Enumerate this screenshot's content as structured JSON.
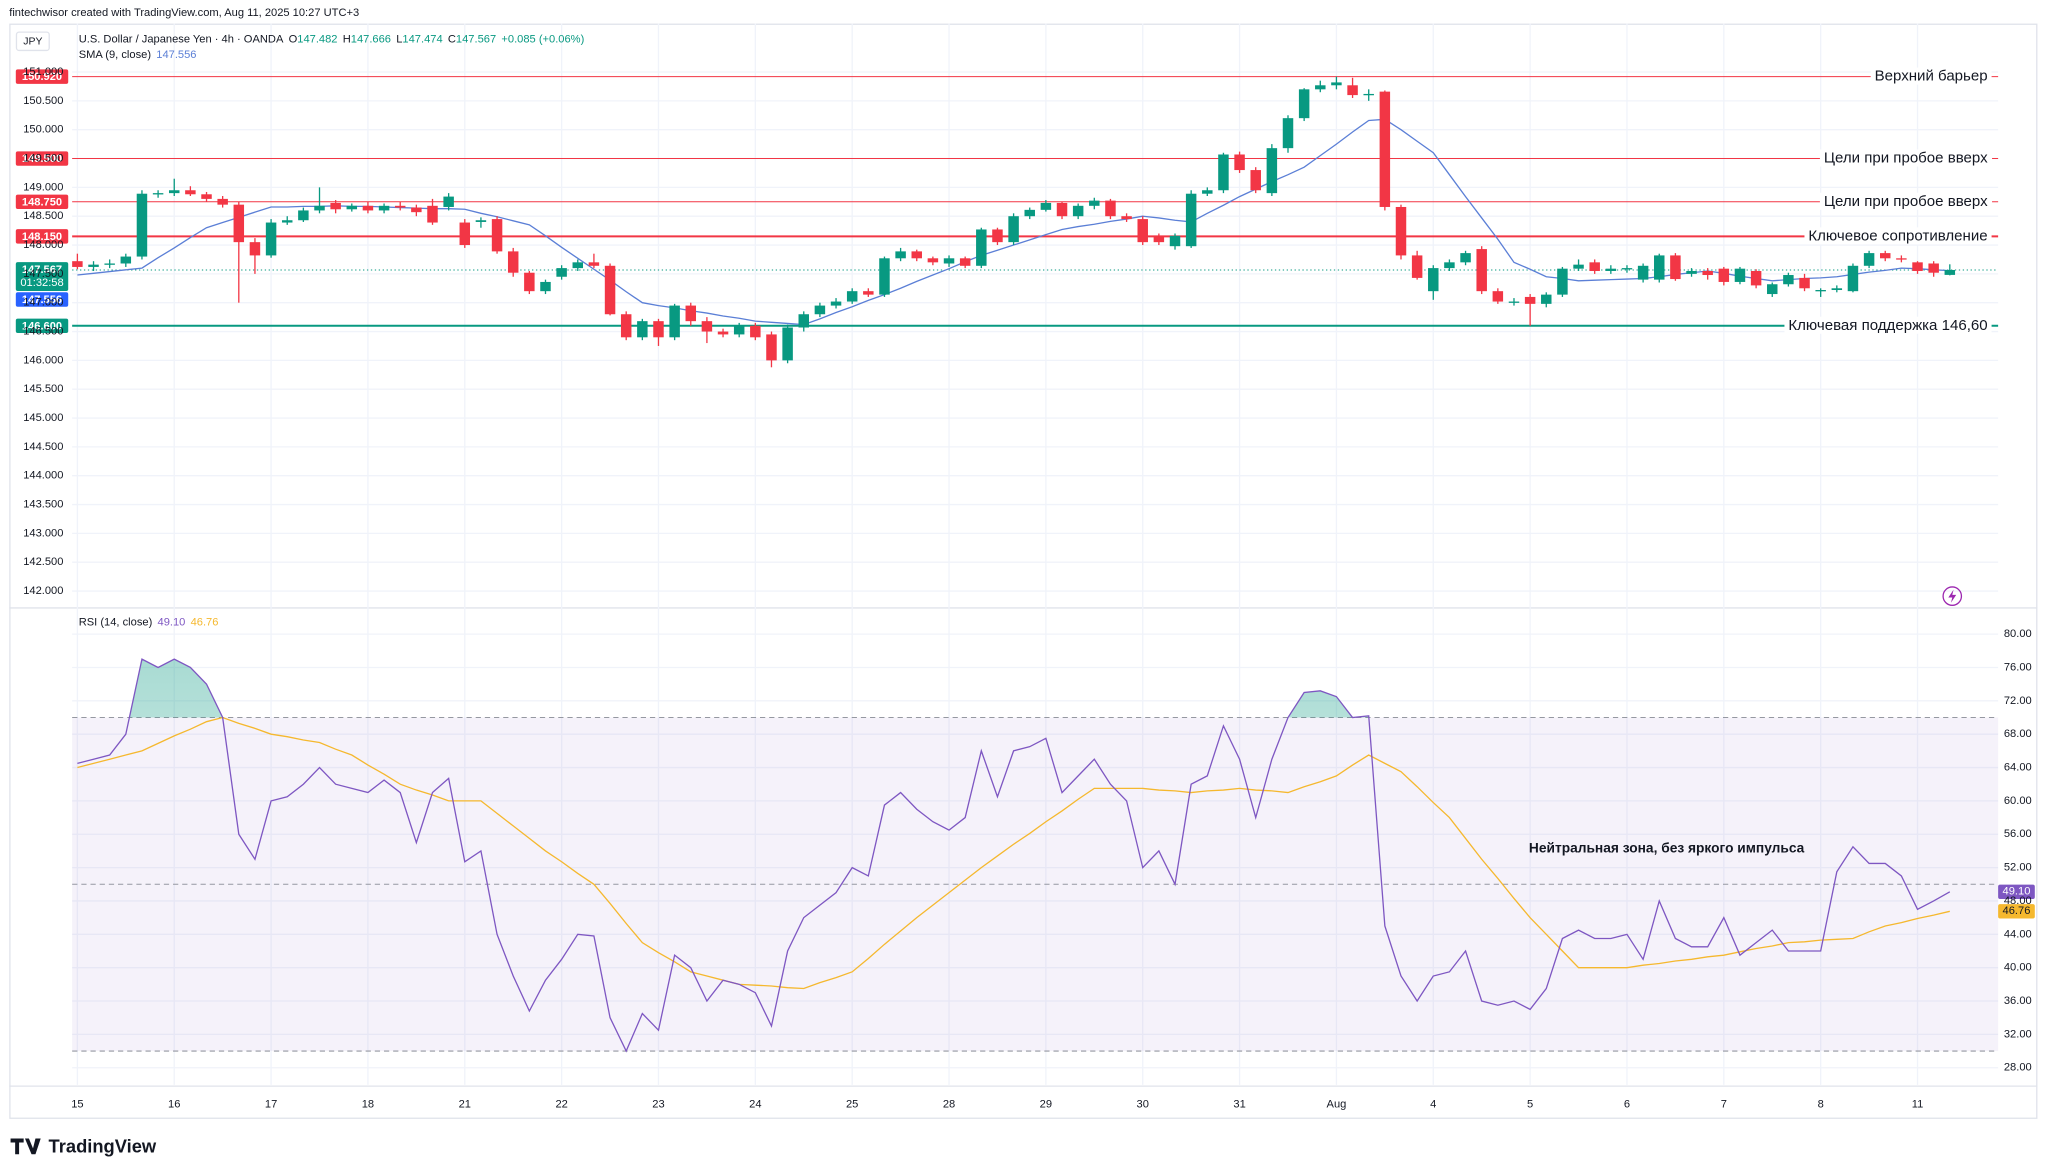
{
  "chart_data": {
    "type": "candlestick",
    "credit": "fintechwisor created with TradingView.com, Aug 11, 2025 10:27 UTC+3",
    "symbol": "JPY",
    "title": "U.S. Dollar / Japanese Yen · 4h · OANDA",
    "ohlc_legend": [
      {
        "label": "O",
        "value": 147.482
      },
      {
        "label": "H",
        "value": 147.666
      },
      {
        "label": "L",
        "value": 147.474
      },
      {
        "label": "C",
        "value": 147.567
      }
    ],
    "change": "+0.085 (+0.06%)",
    "up_color": "#089981",
    "down_color": "#f23645",
    "ylim": [
      141.73,
      151.84
    ],
    "yticks": [
      {
        "value": 142,
        "label": "142.000"
      },
      {
        "value": 142.5,
        "label": "142.500"
      },
      {
        "value": 143,
        "label": "143.000"
      },
      {
        "value": 143.5,
        "label": "143.500"
      },
      {
        "value": 144,
        "label": "144.000"
      },
      {
        "value": 144.5,
        "label": "144.500"
      },
      {
        "value": 145,
        "label": "145.000"
      },
      {
        "value": 145.5,
        "label": "145.500"
      },
      {
        "value": 146,
        "label": "146.000"
      },
      {
        "value": 146.5,
        "label": "146.500"
      },
      {
        "value": 147,
        "label": "147.000"
      },
      {
        "value": 147.5,
        "label": "147.500"
      },
      {
        "value": 148,
        "label": "148.000"
      },
      {
        "value": 148.5,
        "label": "148.500"
      },
      {
        "value": 149,
        "label": "149.000"
      },
      {
        "value": 149.5,
        "label": "149.500"
      },
      {
        "value": 150,
        "label": "150.000"
      },
      {
        "value": 150.5,
        "label": "150.500"
      },
      {
        "value": 151,
        "label": "151.000"
      }
    ],
    "x_labels": [
      "15",
      "16",
      "17",
      "18",
      "21",
      "22",
      "23",
      "24",
      "25",
      "28",
      "29",
      "30",
      "31",
      "Aug",
      "4",
      "5",
      "6",
      "7",
      "8",
      "11"
    ],
    "candles": [
      [
        147.72,
        147.85,
        147.58,
        147.62
      ],
      [
        147.62,
        147.72,
        147.55,
        147.66
      ],
      [
        147.66,
        147.75,
        147.6,
        147.68
      ],
      [
        147.68,
        147.85,
        147.62,
        147.8
      ],
      [
        147.8,
        148.95,
        147.75,
        148.89
      ],
      [
        148.89,
        148.95,
        148.82,
        148.9
      ],
      [
        148.9,
        149.15,
        148.85,
        148.95
      ],
      [
        148.95,
        149.02,
        148.85,
        148.88
      ],
      [
        148.88,
        148.92,
        148.75,
        148.8
      ],
      [
        148.8,
        148.85,
        148.65,
        148.7
      ],
      [
        148.7,
        148.75,
        147.0,
        148.05
      ],
      [
        148.05,
        148.12,
        147.5,
        147.82
      ],
      [
        147.82,
        148.45,
        147.78,
        148.39
      ],
      [
        148.39,
        148.5,
        148.35,
        148.43
      ],
      [
        148.43,
        148.65,
        148.4,
        148.6
      ],
      [
        148.6,
        149.0,
        148.55,
        148.68
      ],
      [
        148.73,
        148.78,
        148.55,
        148.62
      ],
      [
        148.62,
        148.72,
        148.58,
        148.68
      ],
      [
        148.68,
        148.75,
        148.55,
        148.6
      ],
      [
        148.6,
        148.72,
        148.55,
        148.68
      ],
      [
        148.68,
        148.75,
        148.6,
        148.65
      ],
      [
        148.65,
        148.7,
        148.5,
        148.57
      ],
      [
        148.68,
        148.8,
        148.35,
        148.39
      ],
      [
        148.66,
        148.9,
        148.6,
        148.84
      ],
      [
        148.39,
        148.45,
        147.95,
        148.0
      ],
      [
        148.4,
        148.48,
        148.3,
        148.43
      ],
      [
        148.45,
        148.5,
        147.85,
        147.89
      ],
      [
        147.89,
        147.95,
        147.45,
        147.52
      ],
      [
        147.52,
        147.55,
        147.15,
        147.2
      ],
      [
        147.2,
        147.4,
        147.15,
        147.36
      ],
      [
        147.45,
        147.65,
        147.4,
        147.6
      ],
      [
        147.6,
        147.75,
        147.55,
        147.7
      ],
      [
        147.7,
        147.85,
        147.6,
        147.64
      ],
      [
        147.64,
        147.68,
        146.78,
        146.8
      ],
      [
        146.8,
        146.85,
        146.35,
        146.4
      ],
      [
        146.4,
        146.72,
        146.35,
        146.68
      ],
      [
        146.68,
        146.72,
        146.25,
        146.4
      ],
      [
        146.4,
        146.98,
        146.35,
        146.95
      ],
      [
        146.95,
        147.0,
        146.6,
        146.68
      ],
      [
        146.68,
        146.75,
        146.3,
        146.5
      ],
      [
        146.5,
        146.55,
        146.4,
        146.45
      ],
      [
        146.45,
        146.65,
        146.4,
        146.6
      ],
      [
        146.6,
        146.65,
        146.35,
        146.4
      ],
      [
        146.45,
        146.5,
        145.88,
        146.0
      ],
      [
        146.0,
        146.62,
        145.95,
        146.57
      ],
      [
        146.57,
        146.85,
        146.5,
        146.8
      ],
      [
        146.8,
        147.0,
        146.75,
        146.95
      ],
      [
        146.95,
        147.08,
        146.9,
        147.02
      ],
      [
        147.02,
        147.25,
        146.98,
        147.2
      ],
      [
        147.2,
        147.25,
        147.1,
        147.14
      ],
      [
        147.14,
        147.8,
        147.1,
        147.77
      ],
      [
        147.77,
        147.95,
        147.72,
        147.89
      ],
      [
        147.89,
        147.92,
        147.72,
        147.77
      ],
      [
        147.77,
        147.8,
        147.65,
        147.7
      ],
      [
        147.68,
        147.82,
        147.62,
        147.77
      ],
      [
        147.77,
        147.8,
        147.6,
        147.64
      ],
      [
        147.64,
        148.3,
        147.6,
        148.27
      ],
      [
        148.27,
        148.3,
        148.0,
        148.05
      ],
      [
        148.05,
        148.55,
        148.0,
        148.5
      ],
      [
        148.5,
        148.65,
        148.45,
        148.61
      ],
      [
        148.61,
        148.78,
        148.58,
        148.73
      ],
      [
        148.73,
        148.75,
        148.45,
        148.5
      ],
      [
        148.5,
        148.72,
        148.45,
        148.68
      ],
      [
        148.68,
        148.82,
        148.62,
        148.77
      ],
      [
        148.77,
        148.8,
        148.45,
        148.5
      ],
      [
        148.5,
        148.55,
        148.4,
        148.45
      ],
      [
        148.45,
        148.5,
        148.0,
        148.05
      ],
      [
        148.15,
        148.2,
        148.0,
        148.05
      ],
      [
        147.98,
        148.2,
        147.92,
        148.16
      ],
      [
        147.98,
        148.95,
        147.95,
        148.89
      ],
      [
        148.89,
        149.0,
        148.85,
        148.95
      ],
      [
        148.95,
        149.6,
        148.9,
        149.57
      ],
      [
        149.57,
        149.62,
        149.25,
        149.3
      ],
      [
        149.3,
        149.35,
        148.9,
        148.95
      ],
      [
        148.9,
        149.75,
        148.85,
        149.68
      ],
      [
        149.68,
        150.25,
        149.6,
        150.2
      ],
      [
        150.2,
        150.72,
        150.15,
        150.7
      ],
      [
        150.7,
        150.85,
        150.65,
        150.77
      ],
      [
        150.77,
        150.92,
        150.7,
        150.82
      ],
      [
        150.77,
        150.9,
        150.55,
        150.6
      ],
      [
        150.6,
        150.7,
        150.5,
        150.62
      ],
      [
        150.66,
        150.68,
        148.6,
        148.66
      ],
      [
        148.66,
        148.7,
        147.75,
        147.82
      ],
      [
        147.82,
        147.9,
        147.4,
        147.43
      ],
      [
        147.2,
        147.65,
        147.05,
        147.6
      ],
      [
        147.6,
        147.75,
        147.55,
        147.7
      ],
      [
        147.7,
        147.9,
        147.65,
        147.86
      ],
      [
        147.93,
        147.98,
        147.15,
        147.2
      ],
      [
        147.2,
        147.25,
        146.98,
        147.02
      ],
      [
        147.02,
        147.08,
        146.95,
        147.02
      ],
      [
        147.1,
        147.15,
        146.6,
        146.98
      ],
      [
        146.98,
        147.18,
        146.92,
        147.14
      ],
      [
        147.14,
        147.62,
        147.1,
        147.59
      ],
      [
        147.59,
        147.75,
        147.55,
        147.66
      ],
      [
        147.7,
        147.75,
        147.5,
        147.55
      ],
      [
        147.55,
        147.65,
        147.5,
        147.59
      ],
      [
        147.59,
        147.65,
        147.52,
        147.6
      ],
      [
        147.4,
        147.68,
        147.35,
        147.64
      ],
      [
        147.4,
        147.85,
        147.35,
        147.82
      ],
      [
        147.82,
        147.86,
        147.38,
        147.41
      ],
      [
        147.5,
        147.6,
        147.45,
        147.55
      ],
      [
        147.55,
        147.6,
        147.4,
        147.48
      ],
      [
        147.59,
        147.62,
        147.3,
        147.36
      ],
      [
        147.36,
        147.62,
        147.32,
        147.59
      ],
      [
        147.55,
        147.58,
        147.25,
        147.3
      ],
      [
        147.15,
        147.35,
        147.1,
        147.32
      ],
      [
        147.32,
        147.52,
        147.28,
        147.48
      ],
      [
        147.43,
        147.5,
        147.2,
        147.25
      ],
      [
        147.2,
        147.25,
        147.1,
        147.22
      ],
      [
        147.22,
        147.3,
        147.18,
        147.25
      ],
      [
        147.2,
        147.68,
        147.18,
        147.64
      ],
      [
        147.64,
        147.9,
        147.6,
        147.86
      ],
      [
        147.86,
        147.9,
        147.72,
        147.77
      ],
      [
        147.77,
        147.82,
        147.7,
        147.75
      ],
      [
        147.7,
        147.72,
        147.5,
        147.55
      ],
      [
        147.68,
        147.72,
        147.45,
        147.52
      ],
      [
        147.482,
        147.666,
        147.474,
        147.567
      ]
    ],
    "last_price": 147.567,
    "countdown": "01:32:58",
    "sma": {
      "name": "SMA (9, close)",
      "value": 147.556,
      "color": "#5b7fd6",
      "values": [
        147.48,
        147.51,
        147.54,
        147.57,
        147.6,
        147.78,
        147.95,
        148.13,
        148.3,
        148.39,
        148.48,
        148.57,
        148.66,
        148.66,
        148.67,
        148.67,
        148.68,
        148.67,
        148.67,
        148.66,
        148.65,
        148.64,
        148.63,
        148.63,
        148.62,
        148.55,
        148.49,
        148.42,
        148.35,
        148.16,
        147.96,
        147.77,
        147.58,
        147.39,
        147.19,
        147.0,
        146.95,
        146.91,
        146.86,
        146.82,
        146.77,
        146.73,
        146.68,
        146.66,
        146.64,
        146.62,
        146.72,
        146.83,
        146.93,
        147.04,
        147.14,
        147.25,
        147.37,
        147.48,
        147.59,
        147.71,
        147.82,
        147.91,
        148.0,
        148.09,
        148.18,
        148.27,
        148.32,
        148.36,
        148.41,
        148.45,
        148.5,
        148.47,
        148.43,
        148.4,
        148.55,
        148.69,
        148.84,
        148.97,
        149.1,
        149.22,
        149.35,
        149.55,
        149.75,
        149.96,
        150.16,
        150.18,
        150.0,
        149.8,
        149.6,
        149.22,
        148.84,
        148.47,
        148.1,
        147.7,
        147.58,
        147.45,
        147.42,
        147.38,
        147.39,
        147.4,
        147.41,
        147.42,
        147.45,
        147.49,
        147.52,
        147.55,
        147.51,
        147.46,
        147.42,
        147.38,
        147.4,
        147.42,
        147.43,
        147.45,
        147.49,
        147.53,
        147.56,
        147.6,
        147.59,
        147.57,
        147.556
      ]
    },
    "levels": [
      {
        "value": 150.92,
        "label": "150.920",
        "text": "Верхний барьер",
        "color": "#f23645"
      },
      {
        "value": 149.5,
        "label": "149.500",
        "text": "Цели при пробое вверх",
        "color": "#f23645"
      },
      {
        "value": 148.75,
        "label": "148.750",
        "text": "Цели при пробое вверх",
        "color": "#f23645"
      },
      {
        "value": 148.15,
        "label": "148.150",
        "text": "Ключевое сопротивление",
        "color": "#f23645"
      },
      {
        "value": 146.6,
        "label": "146.600",
        "text": "Ключевая поддержка 146,60",
        "color": "#089981"
      }
    ],
    "rsi": {
      "name": "RSI (14, close)",
      "current": {
        "value": 49.1,
        "label": "49.10"
      },
      "ma_current": 46.76,
      "color": "#7e57c2",
      "ma_color": "#f5b82e",
      "ylim": [
        25.95,
        83.14
      ],
      "yticks": [
        {
          "value": 28,
          "label": "28.00"
        },
        {
          "value": 32,
          "label": "32.00"
        },
        {
          "value": 36,
          "label": "36.00"
        },
        {
          "value": 40,
          "label": "40.00"
        },
        {
          "value": 44,
          "label": "44.00"
        },
        {
          "value": 48,
          "label": "48.00"
        },
        {
          "value": 52,
          "label": "52.00"
        },
        {
          "value": 56,
          "label": "56.00"
        },
        {
          "value": 60,
          "label": "60.00"
        },
        {
          "value": 64,
          "label": "64.00"
        },
        {
          "value": 68,
          "label": "68.00"
        },
        {
          "value": 72,
          "label": "72.00"
        },
        {
          "value": 76,
          "label": "76.00"
        },
        {
          "value": 80,
          "label": "80.00"
        }
      ],
      "bands": [
        70,
        50,
        30
      ],
      "values": [
        64.5,
        65,
        65.5,
        68,
        77,
        76,
        77,
        76,
        74,
        70,
        56,
        53,
        60,
        60.5,
        62,
        64,
        62,
        61.5,
        61,
        62.5,
        61,
        55,
        61,
        62.7,
        52.7,
        54,
        44,
        39,
        34.8,
        38.5,
        41,
        44,
        43.8,
        34,
        30,
        34.5,
        32.5,
        41.5,
        40,
        36,
        38.5,
        38,
        37,
        33,
        42,
        46,
        47.5,
        49,
        52,
        51,
        59.5,
        61,
        59,
        57.5,
        56.5,
        58,
        66,
        60.5,
        66,
        66.5,
        67.5,
        61,
        63,
        65,
        62,
        60,
        52,
        54,
        50,
        62,
        63,
        69,
        65,
        58,
        65,
        70,
        73,
        73.2,
        72.5,
        70,
        70.2,
        45,
        39,
        36,
        39,
        39.5,
        42,
        36,
        35.5,
        36,
        35,
        37.5,
        43.5,
        44.5,
        43.5,
        43.5,
        44,
        41,
        48,
        43.5,
        42.5,
        42.5,
        46,
        41.5,
        43,
        44.5,
        42,
        42,
        42,
        51.5,
        54.5,
        52.5,
        52.5,
        51,
        47,
        48,
        49.1
      ],
      "ma_values": [
        64,
        64.5,
        65,
        65.5,
        66,
        66.9,
        67.8,
        68.6,
        69.5,
        70,
        69.3,
        68.7,
        68,
        67.7,
        67.3,
        67,
        66.2,
        65.5,
        64.3,
        63.2,
        62,
        61.3,
        60.7,
        60,
        60,
        60,
        58.5,
        57,
        55.5,
        54,
        52.7,
        51.3,
        50,
        47.7,
        45.3,
        43,
        41.8,
        40.7,
        39.5,
        39,
        38.5,
        38,
        37.9,
        37.8,
        37.6,
        37.5,
        38.2,
        38.8,
        39.5,
        41.1,
        42.8,
        44.4,
        46,
        47.5,
        49,
        50.5,
        52,
        53.4,
        54.8,
        56.1,
        57.5,
        58.8,
        60.2,
        61.5,
        61.5,
        61.5,
        61.5,
        61.3,
        61.2,
        61,
        61.2,
        61.3,
        61.5,
        61.3,
        61.2,
        61,
        61.7,
        62.3,
        63,
        64.3,
        65.5,
        64.5,
        63.5,
        61.7,
        59.8,
        58,
        55.5,
        53,
        50.7,
        48.3,
        46,
        44,
        42,
        40,
        40,
        40,
        40,
        40.3,
        40.5,
        40.8,
        41,
        41.3,
        41.5,
        41.9,
        42.3,
        42.6,
        43,
        43.1,
        43.3,
        43.4,
        43.5,
        44.3,
        45,
        45.4,
        45.9,
        46.3,
        46.76
      ]
    },
    "annotation": "Нейтральная зона, без яркого импульса",
    "brand": "TradingView"
  }
}
